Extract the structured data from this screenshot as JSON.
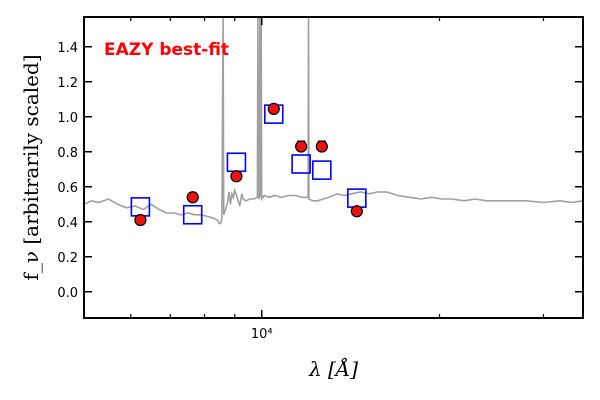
{
  "chart_data": {
    "type": "scatter",
    "annotation": "EAZY best-fit",
    "annotation_color": "#ff0000",
    "xlabel": "λ [Å]",
    "ylabel": "f_ν [arbitrarily scaled]",
    "x_scale": "log",
    "xlim": [
      5000,
      35000
    ],
    "ylim": [
      -0.15,
      1.57
    ],
    "yticks": [
      0.0,
      0.2,
      0.4,
      0.6,
      0.8,
      1.0,
      1.2,
      1.4
    ],
    "ytick_labels": [
      "0.0",
      "0.2",
      "0.4",
      "0.6",
      "0.8",
      "1.0",
      "1.2",
      "1.4"
    ],
    "xticks_major": [
      10000
    ],
    "xtick_major_labels": [
      "10⁴"
    ],
    "xticks_minor": [
      6000,
      7000,
      8000,
      9000,
      20000,
      30000
    ],
    "grid": false,
    "colors": {
      "observed": "#ee1111",
      "model": "#0000ff",
      "template": "#a0a0a0"
    },
    "observed": [
      {
        "x": 6230,
        "y": 0.41,
        "yerr": 0.01
      },
      {
        "x": 7640,
        "y": 0.54,
        "yerr": 0.01
      },
      {
        "x": 9060,
        "y": 0.66,
        "yerr": 0.01
      },
      {
        "x": 10480,
        "y": 1.045,
        "yerr": 0.015
      },
      {
        "x": 11660,
        "y": 0.83,
        "yerr": 0.03
      },
      {
        "x": 12640,
        "y": 0.83,
        "yerr": 0.03
      },
      {
        "x": 14490,
        "y": 0.46,
        "yerr": 0.01
      }
    ],
    "model": [
      {
        "x": 6230,
        "y": 0.485
      },
      {
        "x": 7640,
        "y": 0.44
      },
      {
        "x": 9060,
        "y": 0.74
      },
      {
        "x": 10480,
        "y": 1.015
      },
      {
        "x": 11660,
        "y": 0.73
      },
      {
        "x": 12640,
        "y": 0.695
      },
      {
        "x": 14490,
        "y": 0.535
      }
    ],
    "template_spectrum": [
      [
        5000,
        0.5
      ],
      [
        5150,
        0.52
      ],
      [
        5300,
        0.51
      ],
      [
        5500,
        0.53
      ],
      [
        5700,
        0.5
      ],
      [
        5900,
        0.48
      ],
      [
        6100,
        0.49
      ],
      [
        6300,
        0.47
      ],
      [
        6500,
        0.5
      ],
      [
        6700,
        0.47
      ],
      [
        6900,
        0.45
      ],
      [
        7100,
        0.45
      ],
      [
        7300,
        0.44
      ],
      [
        7500,
        0.45
      ],
      [
        7700,
        0.44
      ],
      [
        7900,
        0.44
      ],
      [
        8100,
        0.43
      ],
      [
        8300,
        0.42
      ],
      [
        8400,
        0.41
      ],
      [
        8480,
        0.39
      ],
      [
        8520,
        0.39
      ],
      [
        8560,
        0.42
      ],
      [
        8600,
        1.57
      ],
      [
        8620,
        0.44
      ],
      [
        8700,
        0.48
      ],
      [
        8750,
        0.51
      ],
      [
        8800,
        0.57
      ],
      [
        8850,
        0.5
      ],
      [
        8900,
        0.56
      ],
      [
        8950,
        0.54
      ],
      [
        9000,
        0.58
      ],
      [
        9100,
        0.53
      ],
      [
        9180,
        0.49
      ],
      [
        9250,
        0.56
      ],
      [
        9300,
        0.53
      ],
      [
        9400,
        0.52
      ],
      [
        9550,
        0.53
      ],
      [
        9700,
        0.53
      ],
      [
        9830,
        0.54
      ],
      [
        9850,
        1.57
      ],
      [
        9870,
        0.54
      ],
      [
        9900,
        0.53
      ],
      [
        9930,
        1.57
      ],
      [
        9950,
        0.54
      ],
      [
        9980,
        1.57
      ],
      [
        10000,
        0.53
      ],
      [
        10100,
        0.55
      ],
      [
        10300,
        0.54
      ],
      [
        10500,
        0.55
      ],
      [
        10800,
        0.54
      ],
      [
        11100,
        0.55
      ],
      [
        11400,
        0.55
      ],
      [
        11700,
        0.54
      ],
      [
        11950,
        0.54
      ],
      [
        11980,
        0.54
      ],
      [
        12000,
        1.57
      ],
      [
        12020,
        0.53
      ],
      [
        12200,
        0.52
      ],
      [
        12450,
        0.52
      ],
      [
        12700,
        0.53
      ],
      [
        13000,
        0.54
      ],
      [
        13400,
        0.56
      ],
      [
        13800,
        0.55
      ],
      [
        14200,
        0.56
      ],
      [
        14700,
        0.57
      ],
      [
        15200,
        0.56
      ],
      [
        15700,
        0.57
      ],
      [
        16300,
        0.57
      ],
      [
        17000,
        0.55
      ],
      [
        17800,
        0.54
      ],
      [
        18600,
        0.53
      ],
      [
        19400,
        0.54
      ],
      [
        20200,
        0.53
      ],
      [
        21000,
        0.53
      ],
      [
        22000,
        0.52
      ],
      [
        23000,
        0.53
      ],
      [
        24000,
        0.52
      ],
      [
        25000,
        0.52
      ],
      [
        26500,
        0.52
      ],
      [
        28000,
        0.52
      ],
      [
        30000,
        0.51
      ],
      [
        32000,
        0.52
      ],
      [
        33500,
        0.51
      ],
      [
        35000,
        0.52
      ]
    ]
  }
}
